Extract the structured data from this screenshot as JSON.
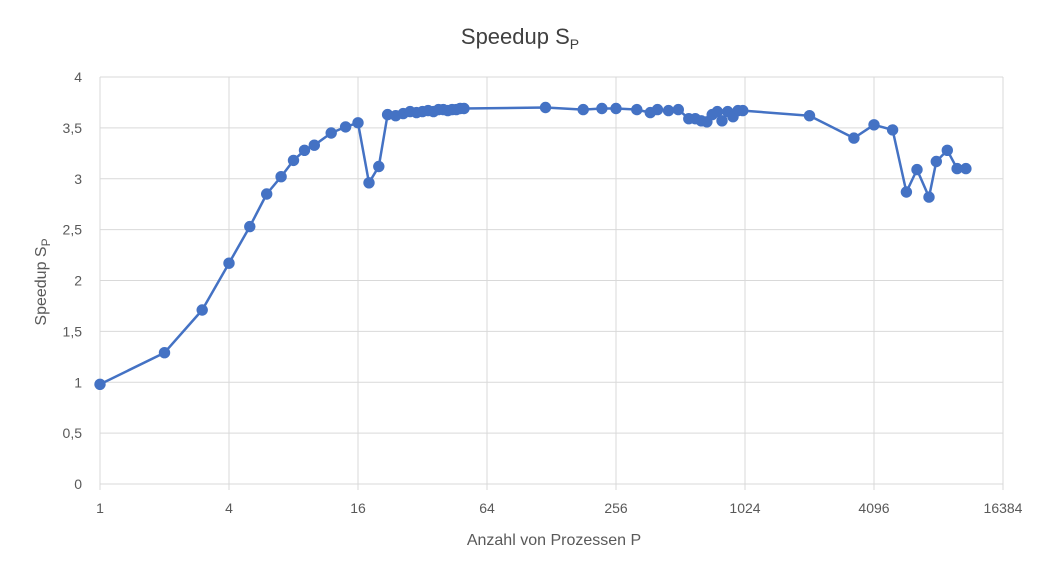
{
  "chart_data": {
    "type": "line",
    "title": "Speedup S",
    "title_subscript": "P",
    "xlabel": "Anzahl von Prozessen P",
    "ylabel": "Speedup S",
    "ylabel_subscript": "P",
    "x_scale": "log2",
    "xlim": [
      1,
      16384
    ],
    "ylim": [
      0,
      4
    ],
    "x_ticks": [
      1,
      4,
      16,
      64,
      256,
      1024,
      4096,
      16384
    ],
    "x_tick_labels": [
      "1",
      "4",
      "16",
      "64",
      "256",
      "1024",
      "4096",
      "16384"
    ],
    "y_ticks": [
      0,
      0.5,
      1,
      1.5,
      2,
      2.5,
      3,
      3.5,
      4
    ],
    "y_tick_labels": [
      "0",
      "0,5",
      "1",
      "1,5",
      "2",
      "2,5",
      "3",
      "3,5",
      "4"
    ],
    "grid": true,
    "legend": "none",
    "colors": {
      "series": "#4472C4",
      "grid": "#D9D9D9",
      "text": "#595959",
      "title": "#404040"
    },
    "series": [
      {
        "x": [
          1,
          2,
          3,
          4,
          5,
          6,
          7,
          8,
          9,
          10,
          12,
          14,
          16,
          18,
          20,
          22,
          24,
          26,
          28,
          30,
          32,
          34,
          36,
          38,
          40,
          42,
          44,
          46,
          48,
          50,
          120,
          180,
          220,
          256,
          320,
          370,
          400,
          450,
          500,
          560,
          600,
          640,
          680,
          720,
          760,
          800,
          850,
          900,
          950,
          1000,
          2048,
          3300,
          4096,
          5000,
          5800,
          6500,
          7400,
          8000,
          9000,
          10000,
          11000
        ],
        "y": [
          0.98,
          1.29,
          1.71,
          2.17,
          2.53,
          2.85,
          3.02,
          3.18,
          3.28,
          3.33,
          3.45,
          3.51,
          3.55,
          2.96,
          3.12,
          3.63,
          3.62,
          3.64,
          3.66,
          3.65,
          3.66,
          3.67,
          3.66,
          3.68,
          3.68,
          3.67,
          3.68,
          3.68,
          3.69,
          3.69,
          3.7,
          3.68,
          3.69,
          3.69,
          3.68,
          3.65,
          3.68,
          3.67,
          3.68,
          3.59,
          3.59,
          3.57,
          3.56,
          3.63,
          3.66,
          3.57,
          3.66,
          3.61,
          3.67,
          3.67,
          3.62,
          3.4,
          3.53,
          3.48,
          2.87,
          3.09,
          2.82,
          3.17,
          3.28,
          3.1,
          3.1
        ]
      }
    ]
  }
}
